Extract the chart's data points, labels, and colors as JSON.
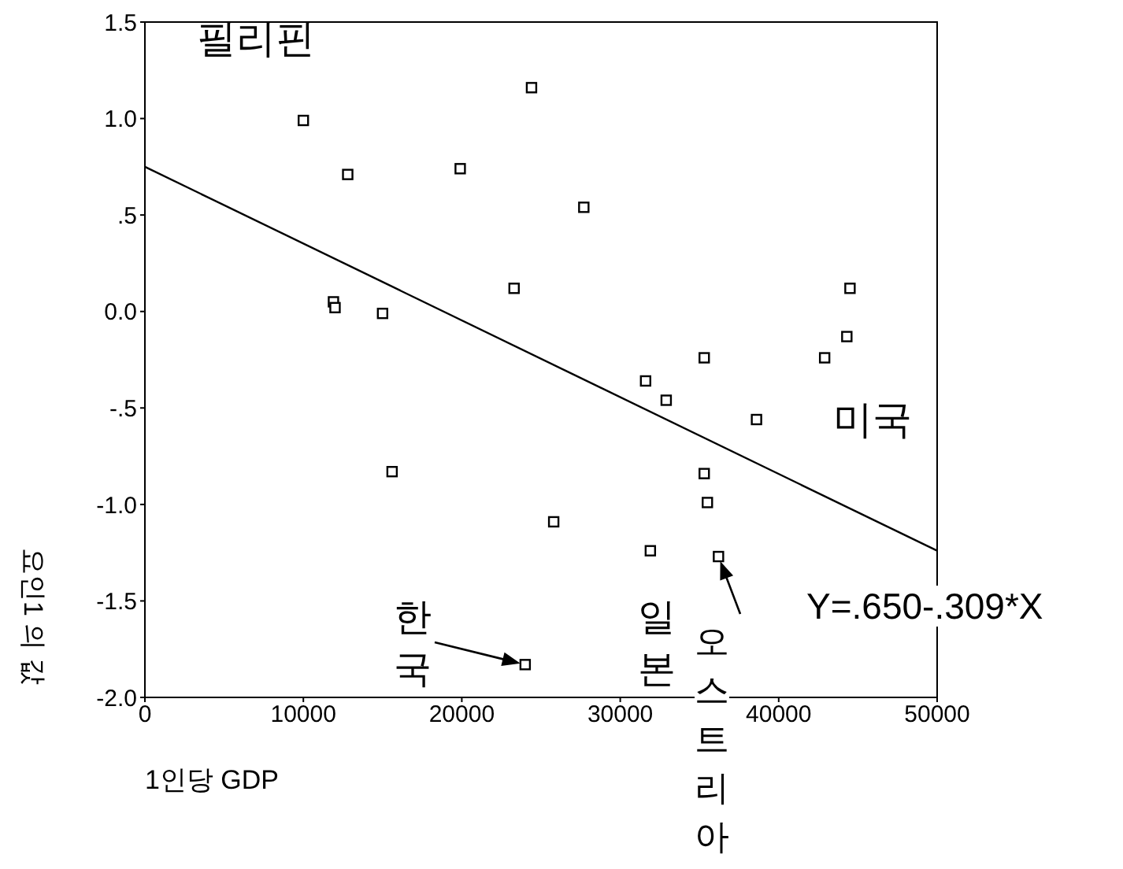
{
  "chart_data": {
    "type": "scatter",
    "xlabel": "1인당 GDP",
    "ylabel": "요인1 의 값",
    "xlim": [
      0,
      50000
    ],
    "xticks": [
      0,
      10000,
      20000,
      30000,
      40000,
      50000
    ],
    "ylim": [
      -2.0,
      1.5
    ],
    "yticks": [
      {
        "value": 1.5,
        "label": "1.5"
      },
      {
        "value": 1.0,
        "label": "1.0"
      },
      {
        "value": 0.5,
        "label": ".5"
      },
      {
        "value": 0.0,
        "label": "0.0"
      },
      {
        "value": -0.5,
        "label": "-.5"
      },
      {
        "value": -1.0,
        "label": "-1.0"
      },
      {
        "value": -1.5,
        "label": "-1.5"
      },
      {
        "value": -2.0,
        "label": "-2.0"
      }
    ],
    "marker": "square",
    "series": [
      {
        "color": "#000000",
        "x": [
          10000,
          12800,
          11900,
          12000,
          15000,
          15600,
          19900,
          24400,
          23300,
          27700,
          25800,
          24000,
          31600,
          32900,
          31900,
          35300,
          35300,
          35500,
          36200,
          38600,
          42900,
          44300,
          44500
        ],
        "values": [
          0.99,
          0.71,
          0.05,
          0.02,
          -0.01,
          -0.83,
          0.74,
          1.16,
          0.12,
          0.54,
          -1.09,
          -1.83,
          -0.36,
          -0.46,
          -1.24,
          -0.24,
          -0.84,
          -0.99,
          -1.27,
          -0.56,
          -0.24,
          -0.13,
          0.12
        ]
      },
      {
        "type": "line",
        "color": "#000000",
        "marker": "none",
        "x": [
          0,
          50000
        ],
        "values": [
          0.75,
          -1.24
        ]
      }
    ],
    "annotations": [
      "필리핀",
      "미국",
      {
        "text": "한국",
        "x": 24000,
        "y": -1.83
      },
      "일본",
      {
        "text": "오스트리아",
        "x": 36200,
        "y": -1.27
      },
      "Y=.650-.309*X"
    ]
  }
}
